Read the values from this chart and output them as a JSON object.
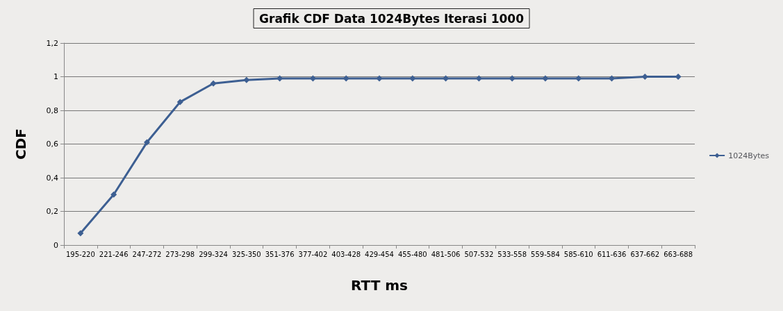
{
  "chart_data": {
    "type": "line",
    "title": "Grafik CDF Data 1024Bytes Iterasi 1000",
    "xlabel": "RTT ms",
    "ylabel": "CDF",
    "categories": [
      "195-220",
      "221-246",
      "247-272",
      "273-298",
      "299-324",
      "325-350",
      "351-376",
      "377-402",
      "403-428",
      "429-454",
      "455-480",
      "481-506",
      "507-532",
      "533-558",
      "559-584",
      "585-610",
      "611-636",
      "637-662",
      "663-688"
    ],
    "series": [
      {
        "name": "1024Bytes",
        "color": "#3d5f92",
        "values": [
          0.07,
          0.3,
          0.61,
          0.85,
          0.96,
          0.98,
          0.99,
          0.99,
          0.99,
          0.99,
          0.99,
          0.99,
          0.99,
          0.99,
          0.99,
          0.99,
          0.99,
          1,
          1
        ]
      }
    ],
    "ylim": [
      0,
      1.2
    ],
    "yticks": [
      0,
      {
        "value": 0.2,
        "label": "0,2"
      },
      {
        "value": 0.4,
        "label": "0,4"
      },
      {
        "value": 0.6,
        "label": "0,6"
      },
      {
        "value": 0.8,
        "label": "0,8"
      },
      1,
      {
        "value": 1.2,
        "label": "1,2"
      }
    ],
    "grid": "y",
    "legend": "right",
    "marker": "diamond",
    "line_style": "solid"
  }
}
